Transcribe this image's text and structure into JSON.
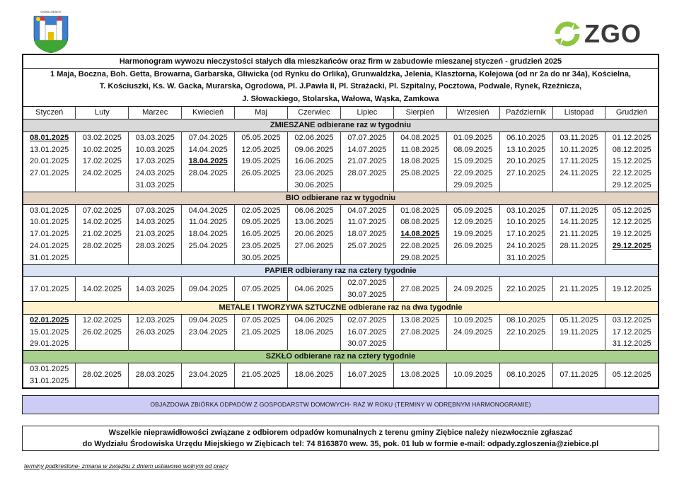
{
  "header": {
    "coat_label": "GMINA ZIĘBICE",
    "logo": "ZGO"
  },
  "table": {
    "title": "Harmonogram wywozu nieczystości stałych dla mieszkańców oraz firm w zabudowie mieszanej styczeń - grudzień 2025",
    "streets": [
      "1 Maja, Boczna, Boh. Getta, Browarna, Garbarska, Gliwicka (od Rynku do Orlika), Grunwaldzka, Jelenia, Klasztorna, Kolejowa (od nr 2a do nr 34a), Kościelna,",
      "T. Kościuszki, Ks. W. Gacka, Murarska, Ogrodowa, Pl. J.Pawła II, Pl. Strażacki, Pl. Szpitalny, Pocztowa, Podwale, Rynek, Rzeźnicza,",
      "J. Słowackiego, Stolarska, Wałowa, Wąska, Zamkowa"
    ],
    "months": [
      "Styczeń",
      "Luty",
      "Marzec",
      "Kwiecień",
      "Maj",
      "Czerwiec",
      "Lipiec",
      "Sierpień",
      "Wrzesień",
      "Październik",
      "Listopad",
      "Grudzień"
    ],
    "sections": [
      {
        "title": "ZMIESZANE odbierane raz w tygodniu",
        "color": "#d9d9d9",
        "underlined": [
          [
            0,
            0
          ],
          [
            3,
            2
          ]
        ],
        "cells": [
          [
            "08.01.2025",
            "13.01.2025",
            "20.01.2025",
            "27.01.2025"
          ],
          [
            "03.02.2025",
            "10.02.2025",
            "17.02.2025",
            "24.02.2025"
          ],
          [
            "03.03.2025",
            "10.03.2025",
            "17.03.2025",
            "24.03.2025",
            "31.03.2025"
          ],
          [
            "07.04.2025",
            "14.04.2025",
            "18.04.2025",
            "28.04.2025"
          ],
          [
            "05.05.2025",
            "12.05.2025",
            "19.05.2025",
            "26.05.2025"
          ],
          [
            "02.06.2025",
            "09.06.2025",
            "16.06.2025",
            "23.06.2025",
            "30.06.2025"
          ],
          [
            "07.07.2025",
            "14.07.2025",
            "21.07.2025",
            "28.07.2025"
          ],
          [
            "04.08.2025",
            "11.08.2025",
            "18.08.2025",
            "25.08.2025"
          ],
          [
            "01.09.2025",
            "08.09.2025",
            "15.09.2025",
            "22.09.2025",
            "29.09.2025"
          ],
          [
            "06.10.2025",
            "13.10.2025",
            "20.10.2025",
            "27.10.2025"
          ],
          [
            "03.11.2025",
            "10.11.2025",
            "17.11.2025",
            "24.11.2025"
          ],
          [
            "01.12.2025",
            "08.12.2025",
            "15.12.2025",
            "22.12.2025",
            "29.12.2025"
          ]
        ]
      },
      {
        "title": "BIO odbierane raz w tygodniu",
        "color": "#e2d3c4",
        "underlined": [
          [
            7,
            2
          ],
          [
            11,
            3
          ]
        ],
        "cells": [
          [
            "03.01.2025",
            "10.01.2025",
            "17.01.2025",
            "24.01.2025",
            "31.01.2025"
          ],
          [
            "07.02.2025",
            "14.02.2025",
            "21.02.2025",
            "28.02.2025"
          ],
          [
            "07.03.2025",
            "14.03.2025",
            "21.03.2025",
            "28.03.2025"
          ],
          [
            "04.04.2025",
            "11.04.2025",
            "18.04.2025",
            "25.04.2025"
          ],
          [
            "02.05.2025",
            "09.05.2025",
            "16.05.2025",
            "23.05.2025",
            "30.05.2025"
          ],
          [
            "06.06.2025",
            "13.06.2025",
            "20.06.2025",
            "27.06.2025"
          ],
          [
            "04.07.2025",
            "11.07.2025",
            "18.07.2025",
            "25.07.2025"
          ],
          [
            "01.08.2025",
            "08.08.2025",
            "14.08.2025",
            "22.08.2025",
            "29.08.2025"
          ],
          [
            "05.09.2025",
            "12.09.2025",
            "19.09.2025",
            "26.09.2025"
          ],
          [
            "03.10.2025",
            "10.10.2025",
            "17.10.2025",
            "24.10.2025",
            "31.10.2025"
          ],
          [
            "07.11.2025",
            "14.11.2025",
            "21.11.2025",
            "28.11.2025"
          ],
          [
            "05.12.2025",
            "12.12.2025",
            "19.12.2025",
            "29.12.2025"
          ]
        ]
      },
      {
        "title": "PAPIER odbierany raz na cztery tygodnie",
        "color": "#dae3f3",
        "underlined": [],
        "cells": [
          [
            "17.01.2025"
          ],
          [
            "14.02.2025"
          ],
          [
            "14.03.2025"
          ],
          [
            "09.04.2025"
          ],
          [
            "07.05.2025"
          ],
          [
            "04.06.2025"
          ],
          [
            "02.07.2025",
            "30.07.2025"
          ],
          [
            "27.08.2025"
          ],
          [
            "24.09.2025"
          ],
          [
            "22.10.2025"
          ],
          [
            "21.11.2025"
          ],
          [
            "19.12.2025"
          ]
        ]
      },
      {
        "title": "METALE I TWORZYWA SZTUCZNE odbierane raz na dwa tygodnie",
        "color": "#fff2cc",
        "underlined": [
          [
            0,
            0
          ]
        ],
        "cells": [
          [
            "02.01.2025",
            "15.01.2025",
            "29.01.2025"
          ],
          [
            "12.02.2025",
            "26.02.2025"
          ],
          [
            "12.03.2025",
            "26.03.2025"
          ],
          [
            "09.04.2025",
            "23.04.2025"
          ],
          [
            "07.05.2025",
            "21.05.2025"
          ],
          [
            "04.06.2025",
            "18.06.2025"
          ],
          [
            "02.07.2025",
            "16.07.2025",
            "30.07.2025"
          ],
          [
            "13.08.2025",
            "27.08.2025"
          ],
          [
            "10.09.2025",
            "24.09.2025"
          ],
          [
            "08.10.2025",
            "22.10.2025"
          ],
          [
            "05.11.2025",
            "19.11.2025"
          ],
          [
            "03.12.2025",
            "17.12.2025",
            "31.12.2025"
          ]
        ]
      },
      {
        "title": "SZKŁO odbierane  raz na cztery tygodnie",
        "color": "#a9d08e",
        "underlined": [],
        "cells": [
          [
            "03.01.2025",
            "31.01.2025"
          ],
          [
            "28.02.2025"
          ],
          [
            "28.03.2025"
          ],
          [
            "23.04.2025"
          ],
          [
            "21.05.2025"
          ],
          [
            "18.06.2025"
          ],
          [
            "16.07.2025"
          ],
          [
            "13.08.2025"
          ],
          [
            "10.09.2025"
          ],
          [
            "08.10.2025"
          ],
          [
            "07.11.2025"
          ],
          [
            "05.12.2025"
          ]
        ]
      }
    ]
  },
  "bulky_note": "OBJAZDOWA ZBIÓRKA ODPADÓW Z GOSPODARSTW DOMOWYCH-  RAZ W ROKU (TERMINY W ODRĘBNYM HARMONOGRAMIE)",
  "contact": [
    "Wszelkie nieprawidłowości związane z odbiorem odpadów komunalnych z terenu gminy Ziębice należy niezwłocznie zgłaszać",
    "do Wydziału Środowiska Urzędu Miejskiego w Ziębicach tel: 74 8163870 wew. 35, pok. 01 lub w formie e-mail: odpady.zgloszenia@ziebice.pl"
  ],
  "footnote": "terminy podkreślone- zmiana w związku z dniem ustawowo wolnym od pracy"
}
